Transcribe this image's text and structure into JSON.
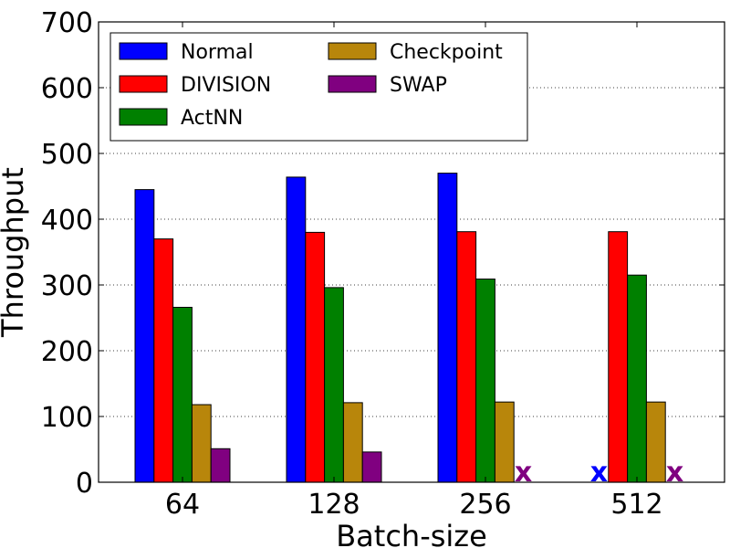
{
  "chart_data": {
    "type": "bar",
    "xlabel": "Batch-size",
    "ylabel": "Throughput",
    "ylim": [
      0,
      700
    ],
    "yticks": [
      0,
      100,
      200,
      300,
      400,
      500,
      600,
      700
    ],
    "categories": [
      "64",
      "128",
      "256",
      "512"
    ],
    "grid": "horizontal-dotted",
    "legend_position": "top-left",
    "missing_marker": "x",
    "series": [
      {
        "name": "Normal",
        "color": "#0000ff",
        "values": [
          445,
          464,
          470,
          null
        ]
      },
      {
        "name": "DIVISION",
        "color": "#ff0000",
        "values": [
          370,
          380,
          381,
          381
        ]
      },
      {
        "name": "ActNN",
        "color": "#008000",
        "values": [
          266,
          296,
          309,
          315
        ]
      },
      {
        "name": "Checkpoint",
        "color": "#b8860b",
        "values": [
          118,
          121,
          122,
          122
        ]
      },
      {
        "name": "SWAP",
        "color": "#800080",
        "values": [
          51,
          46,
          null,
          null
        ]
      }
    ]
  }
}
